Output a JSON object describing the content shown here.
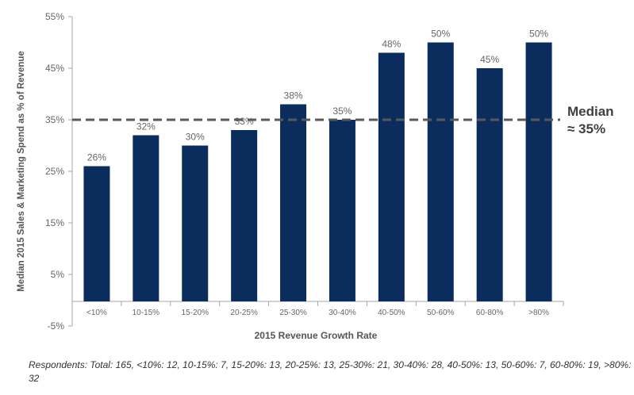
{
  "chart_data": {
    "type": "bar",
    "categories": [
      "<10%",
      "10-15%",
      "15-20%",
      "20-25%",
      "25-30%",
      "30-40%",
      "40-50%",
      "50-60%",
      "60-80%",
      ">80%"
    ],
    "values": [
      26,
      32,
      30,
      33,
      38,
      35,
      48,
      50,
      45,
      50
    ],
    "data_labels": [
      "26%",
      "32%",
      "30%",
      "33%",
      "38%",
      "35%",
      "48%",
      "50%",
      "45%",
      "50%"
    ],
    "xlabel": "2015 Revenue Growth Rate",
    "ylabel": "Median 2015 Sales & Marketing Spend as % of Revenue",
    "ylim": [
      -5,
      55
    ],
    "y_ticks": [
      -5,
      5,
      15,
      25,
      35,
      45,
      55
    ],
    "y_tick_labels": [
      "-5%",
      "5%",
      "15%",
      "25%",
      "35%",
      "45%",
      "55%"
    ],
    "reference_line": {
      "value": 35,
      "style": "dashed",
      "label_line1": "Median",
      "label_line2": "≈ 35%"
    },
    "grid": false,
    "bar_color": "#0b2d5e",
    "reference_color": "#595959"
  },
  "footnote": "Respondents: Total: 165, <10%: 12, 10-15%: 7, 15-20%: 13, 20-25%: 13, 25-30%: 21, 30-40%: 28, 40-50%: 13, 50-60%: 7, 60-80%: 19, >80%: 32"
}
